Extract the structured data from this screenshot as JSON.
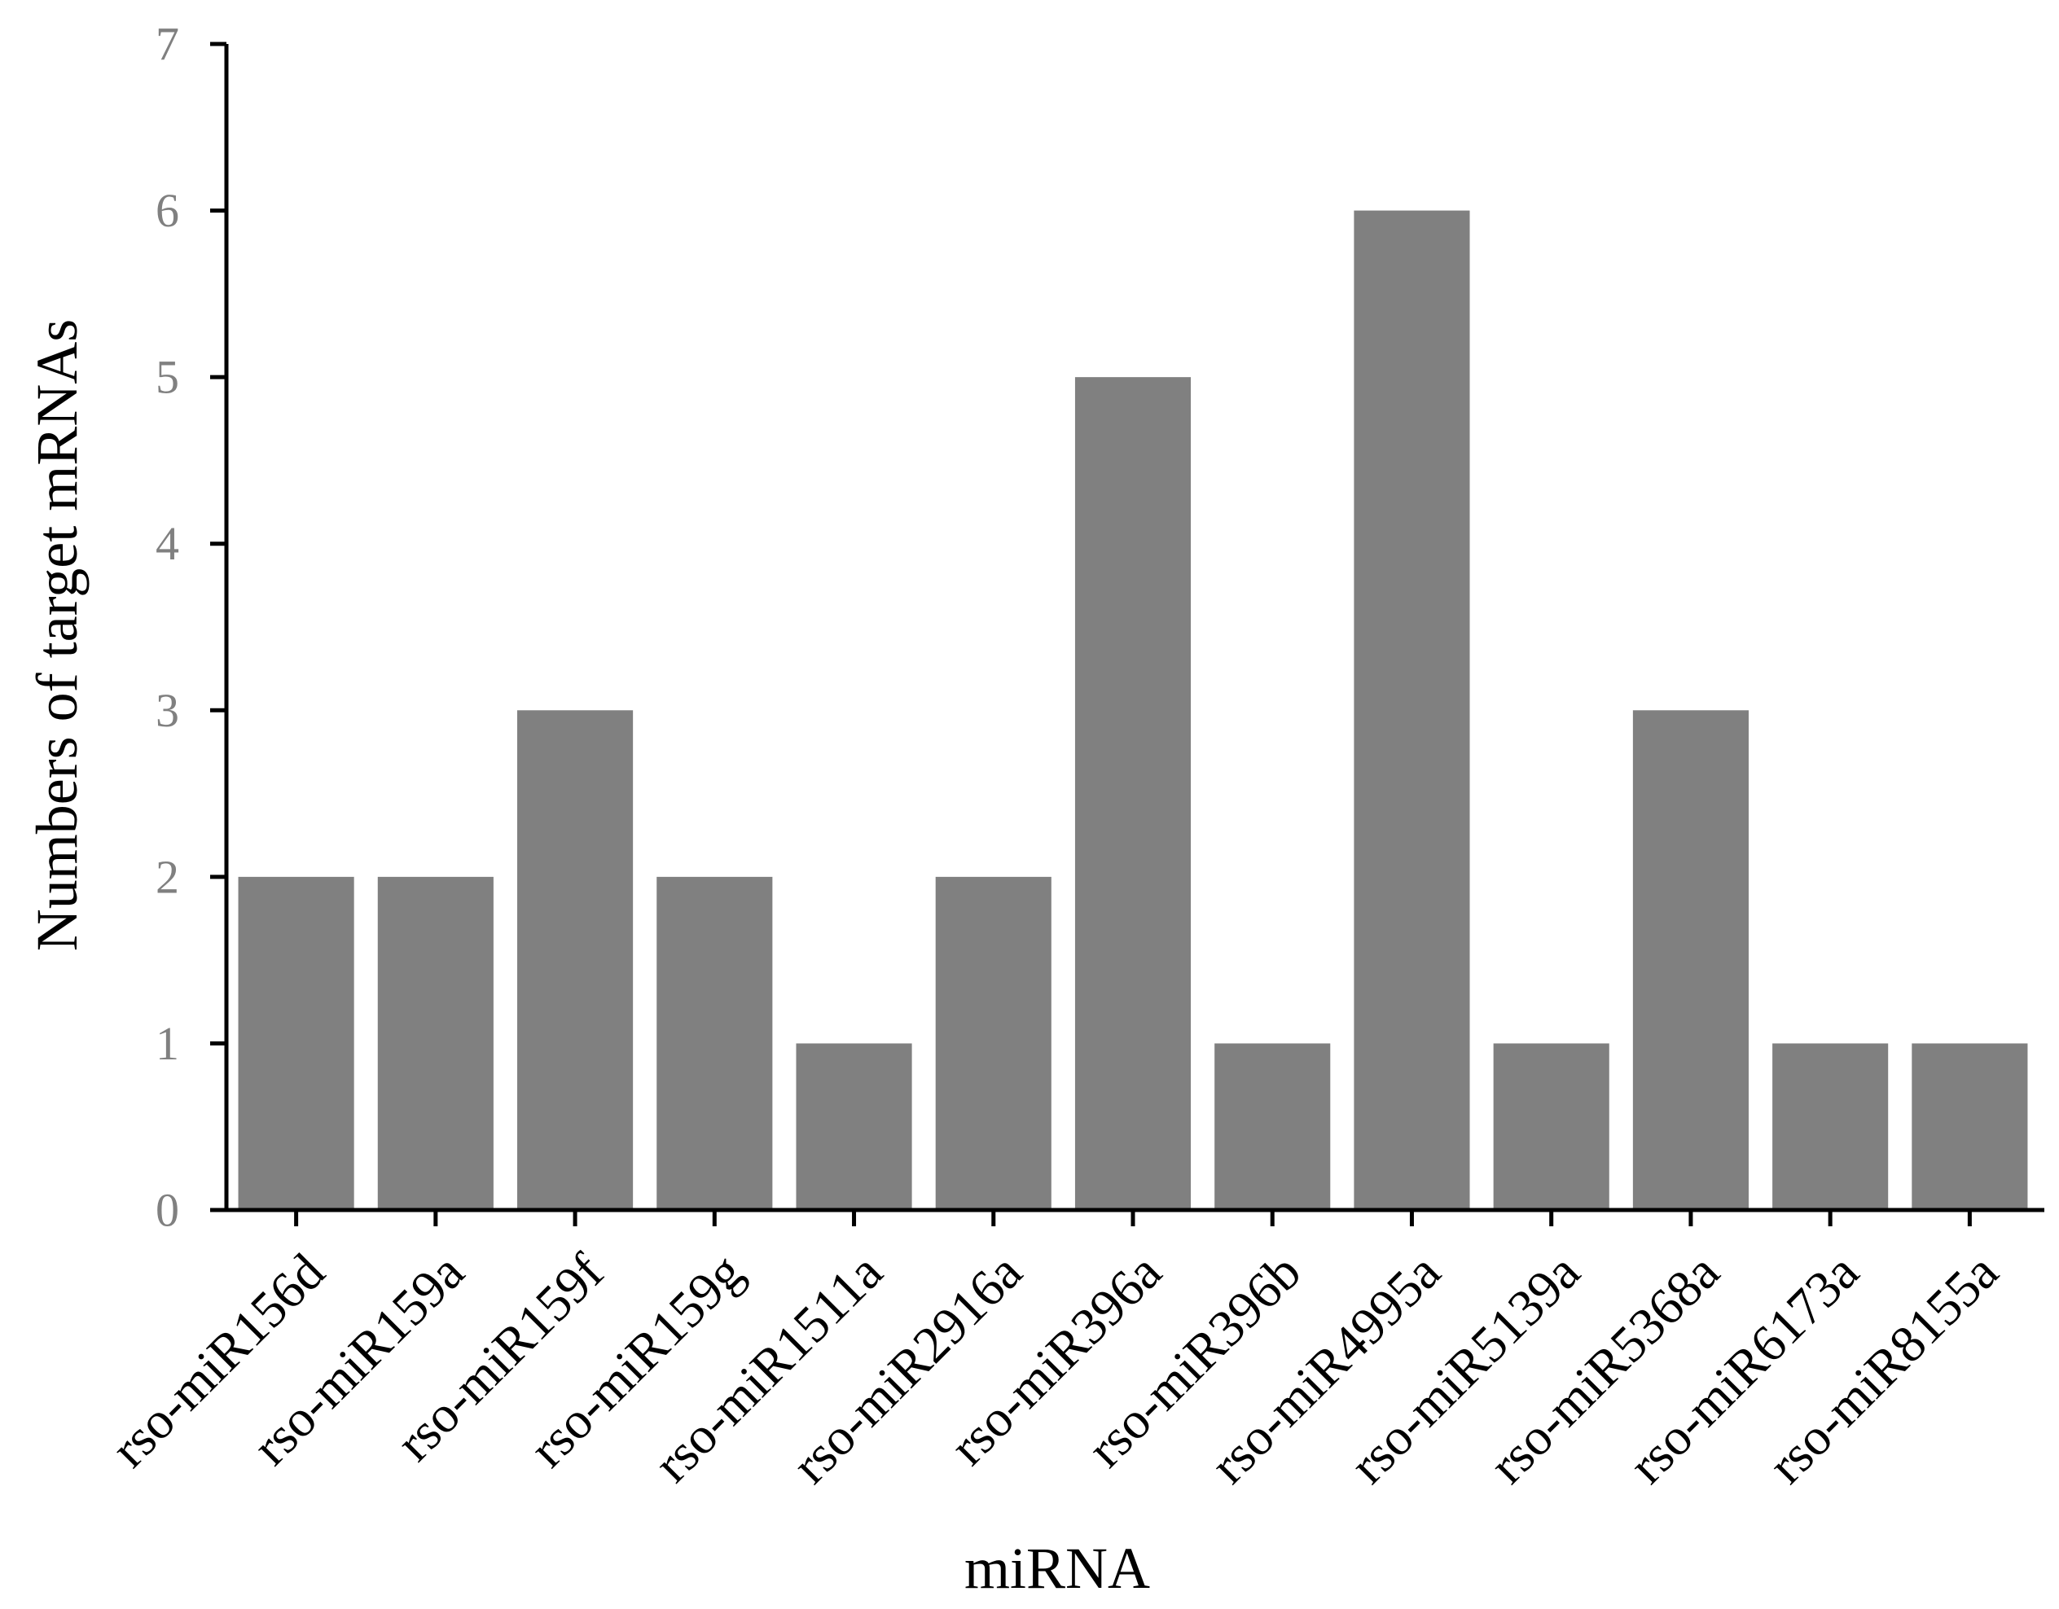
{
  "chart_data": {
    "type": "bar",
    "title": "",
    "xlabel": "miRNA",
    "ylabel": "Numbers of target mRNAs",
    "categories": [
      "rso-miR156d",
      "rso-miR159a",
      "rso-miR159f",
      "rso-miR159g",
      "rso-miR1511a",
      "rso-miR2916a",
      "rso-miR396a",
      "rso-miR396b",
      "rso-miR4995a",
      "rso-miR5139a",
      "rso-miR5368a",
      "rso-miR6173a",
      "rso-miR8155a"
    ],
    "values": [
      2,
      2,
      3,
      2,
      1,
      2,
      5,
      1,
      6,
      1,
      3,
      1,
      1
    ],
    "ylim": [
      0,
      7
    ],
    "yticks": [
      "0",
      "1",
      "2",
      "3",
      "4",
      "5",
      "6",
      "7"
    ],
    "grid": false,
    "legend": "none",
    "colors": {
      "bar": "#808080",
      "axis": "#000000",
      "tick_text": "#808080",
      "text": "#000000"
    }
  }
}
